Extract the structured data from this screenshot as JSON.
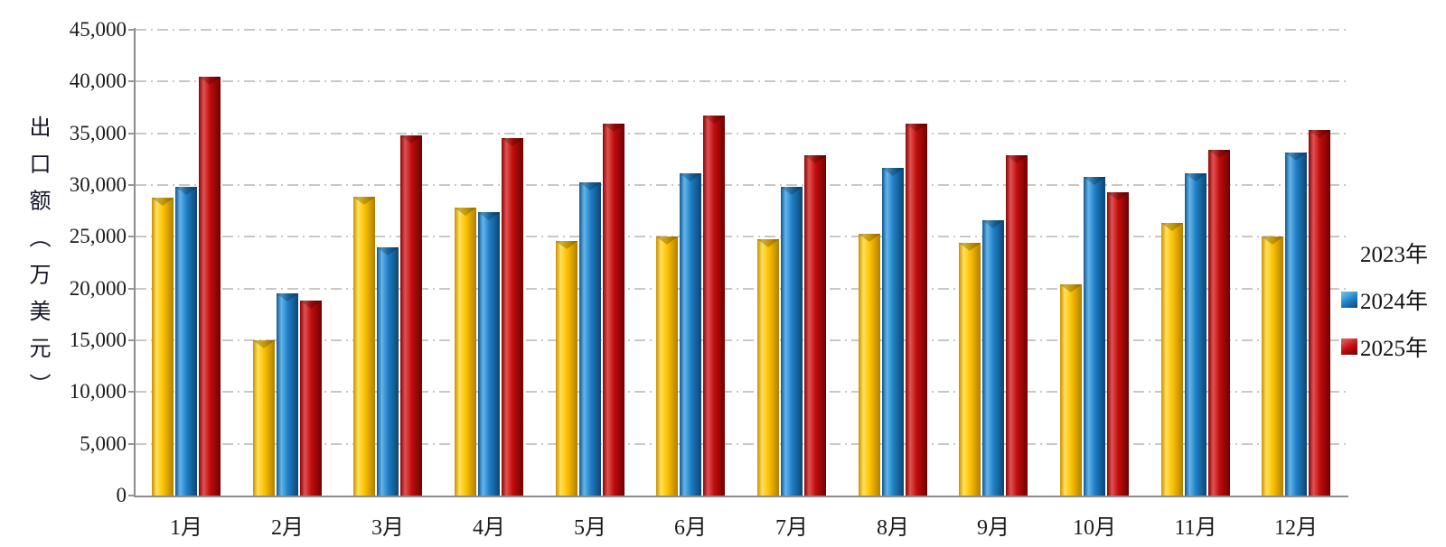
{
  "chart_data": {
    "type": "bar",
    "title": "",
    "ylabel": "出口额（万美元）",
    "xlabel": "",
    "categories": [
      "1月",
      "2月",
      "3月",
      "4月",
      "5月",
      "6月",
      "7月",
      "8月",
      "9月",
      "10月",
      "11月",
      "12月"
    ],
    "series": [
      {
        "name": "2023年",
        "color": "#FCC200",
        "values": [
          28800,
          15000,
          28900,
          27800,
          24600,
          25000,
          24800,
          25300,
          24400,
          20400,
          26300,
          25000
        ]
      },
      {
        "name": "2024年",
        "color": "#1F7FC5",
        "values": [
          29800,
          19500,
          24000,
          27400,
          30300,
          31100,
          29800,
          31700,
          26600,
          30800,
          31100,
          33100
        ]
      },
      {
        "name": "2025年",
        "color": "#C00C0C",
        "values": [
          40500,
          18800,
          34800,
          34500,
          35900,
          36700,
          32900,
          35900,
          32900,
          29300,
          33400,
          35300
        ]
      }
    ],
    "ylim": [
      0,
      45000
    ],
    "ytick_step": 5000,
    "ytick_labels": [
      "0",
      "5,000",
      "10,000",
      "15,000",
      "20,000",
      "25,000",
      "30,000",
      "35,000",
      "40,000",
      "45,000"
    ],
    "grid": "horizontal dash-dot gray lines",
    "legend_position": "right"
  }
}
